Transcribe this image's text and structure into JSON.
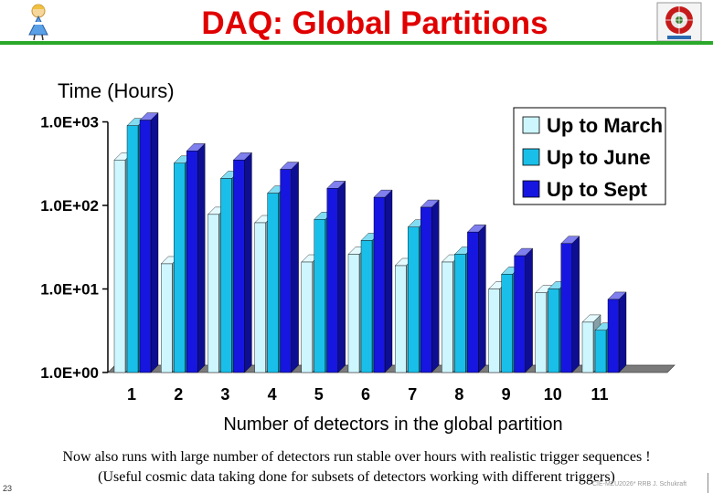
{
  "slide": {
    "title": "DAQ: Global Partitions",
    "note_line1": "Now also runs with large number of detectors run stable over hours with realistic trigger sequences !",
    "note_line2": "(Useful cosmic data taking done for subsets of detectors working with different triggers)",
    "page_number": "23",
    "footer": "CIE-MZU2026* RRB J. Schukraft"
  },
  "colors": {
    "title": "#e00000",
    "title_rule": "#2aa82a",
    "up_to_march": "#cdf6ff",
    "up_to_june": "#19bfe8",
    "up_to_sept": "#1616e0"
  },
  "chart_data": {
    "type": "bar",
    "title": "",
    "ylabel": "Time (Hours)",
    "xlabel": "Number of detectors in the global partition",
    "y_scale": "log",
    "ylim": [
      1,
      1000
    ],
    "y_ticks": [
      1,
      10,
      100,
      1000
    ],
    "y_tick_labels": [
      "1.0E+00",
      "1.0E+01",
      "1.0E+02",
      "1.0E+03"
    ],
    "categories": [
      "1",
      "2",
      "3",
      "4",
      "5",
      "6",
      "7",
      "8",
      "9",
      "10",
      "11"
    ],
    "series": [
      {
        "name": "Up to March",
        "values": [
          350,
          20,
          78,
          62,
          21,
          26,
          19,
          21,
          10,
          9,
          4
        ]
      },
      {
        "name": "Up to June",
        "values": [
          900,
          320,
          210,
          140,
          68,
          38,
          55,
          26,
          15,
          10,
          3.2
        ]
      },
      {
        "name": "Up to Sept",
        "values": [
          1050,
          450,
          350,
          270,
          160,
          125,
          95,
          48,
          25,
          35,
          7.5
        ]
      }
    ],
    "legend_position": "top-right",
    "grid": false,
    "style": "3d-bar"
  }
}
